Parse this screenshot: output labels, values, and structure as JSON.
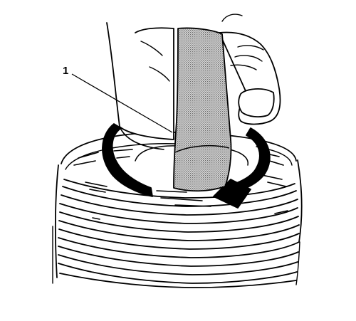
{
  "diagram": {
    "callouts": [
      {
        "id": "1",
        "label": "1"
      }
    ]
  },
  "colors": {
    "line": "#000000",
    "background": "#ffffff",
    "tool_fill": "#b8b8b8"
  },
  "icons": {
    "rotation": "rotation-arrow-icon"
  }
}
